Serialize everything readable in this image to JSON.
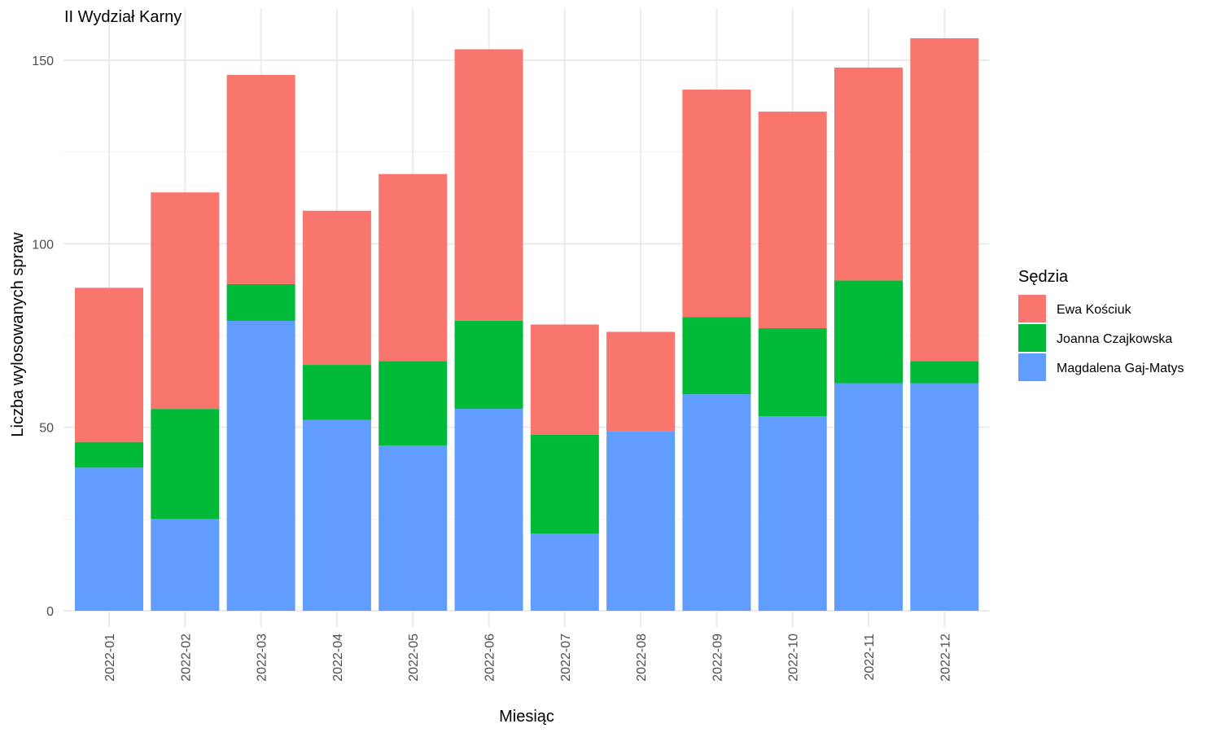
{
  "chart_data": {
    "type": "bar",
    "stacked": true,
    "title": "II Wydział Karny",
    "xlabel": "Miesiąc",
    "ylabel": "Liczba wylosowanych spraw",
    "ylim": [
      0,
      160
    ],
    "yticks": [
      0,
      50,
      100,
      150
    ],
    "grid": true,
    "legend_position": "right",
    "legend_title": "Sędzia",
    "categories": [
      "2022-01",
      "2022-02",
      "2022-03",
      "2022-04",
      "2022-05",
      "2022-06",
      "2022-07",
      "2022-08",
      "2022-09",
      "2022-10",
      "2022-11",
      "2022-12"
    ],
    "series": [
      {
        "name": "Magdalena Gaj-Matys",
        "color": "#619CFF",
        "values": [
          39,
          25,
          79,
          52,
          45,
          55,
          21,
          49,
          59,
          53,
          62,
          62
        ]
      },
      {
        "name": "Joanna Czajkowska",
        "color": "#00BA38",
        "values": [
          7,
          30,
          10,
          15,
          23,
          24,
          27,
          0,
          21,
          24,
          28,
          6
        ]
      },
      {
        "name": "Ewa Kościuk",
        "color": "#F8766D",
        "values": [
          42,
          59,
          57,
          42,
          51,
          74,
          30,
          27,
          62,
          59,
          58,
          88
        ]
      }
    ],
    "legend_order": [
      "Ewa Kościuk",
      "Joanna Czajkowska",
      "Magdalena Gaj-Matys"
    ]
  }
}
